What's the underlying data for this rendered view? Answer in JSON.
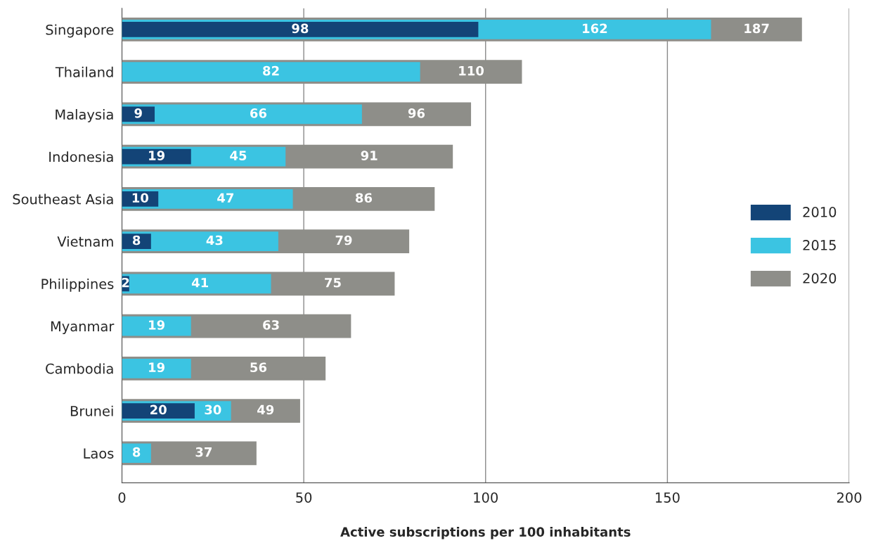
{
  "chart_data": {
    "type": "bar",
    "orientation": "horizontal",
    "xlabel": "Active subscriptions per 100 inhabitants",
    "categories": [
      "Singapore",
      "Thailand",
      "Malaysia",
      "Indonesia",
      "Southeast Asia",
      "Vietnam",
      "Philippines",
      "Myanmar",
      "Cambodia",
      "Brunei",
      "Laos"
    ],
    "series": [
      {
        "name": "2010",
        "color": "#134477",
        "values": [
          98,
          null,
          9,
          19,
          10,
          8,
          2,
          null,
          null,
          20,
          null
        ]
      },
      {
        "name": "2015",
        "color": "#3bc4e2",
        "values": [
          162,
          82,
          66,
          45,
          47,
          43,
          41,
          19,
          19,
          30,
          8
        ]
      },
      {
        "name": "2020",
        "color": "#8e8e89",
        "values": [
          187,
          110,
          96,
          91,
          86,
          79,
          75,
          63,
          56,
          49,
          37
        ]
      }
    ],
    "data_labels": true,
    "xlim": [
      0,
      200
    ],
    "xticks": [
      0,
      50,
      100,
      150,
      200
    ],
    "grid": "x",
    "legend": "right"
  }
}
